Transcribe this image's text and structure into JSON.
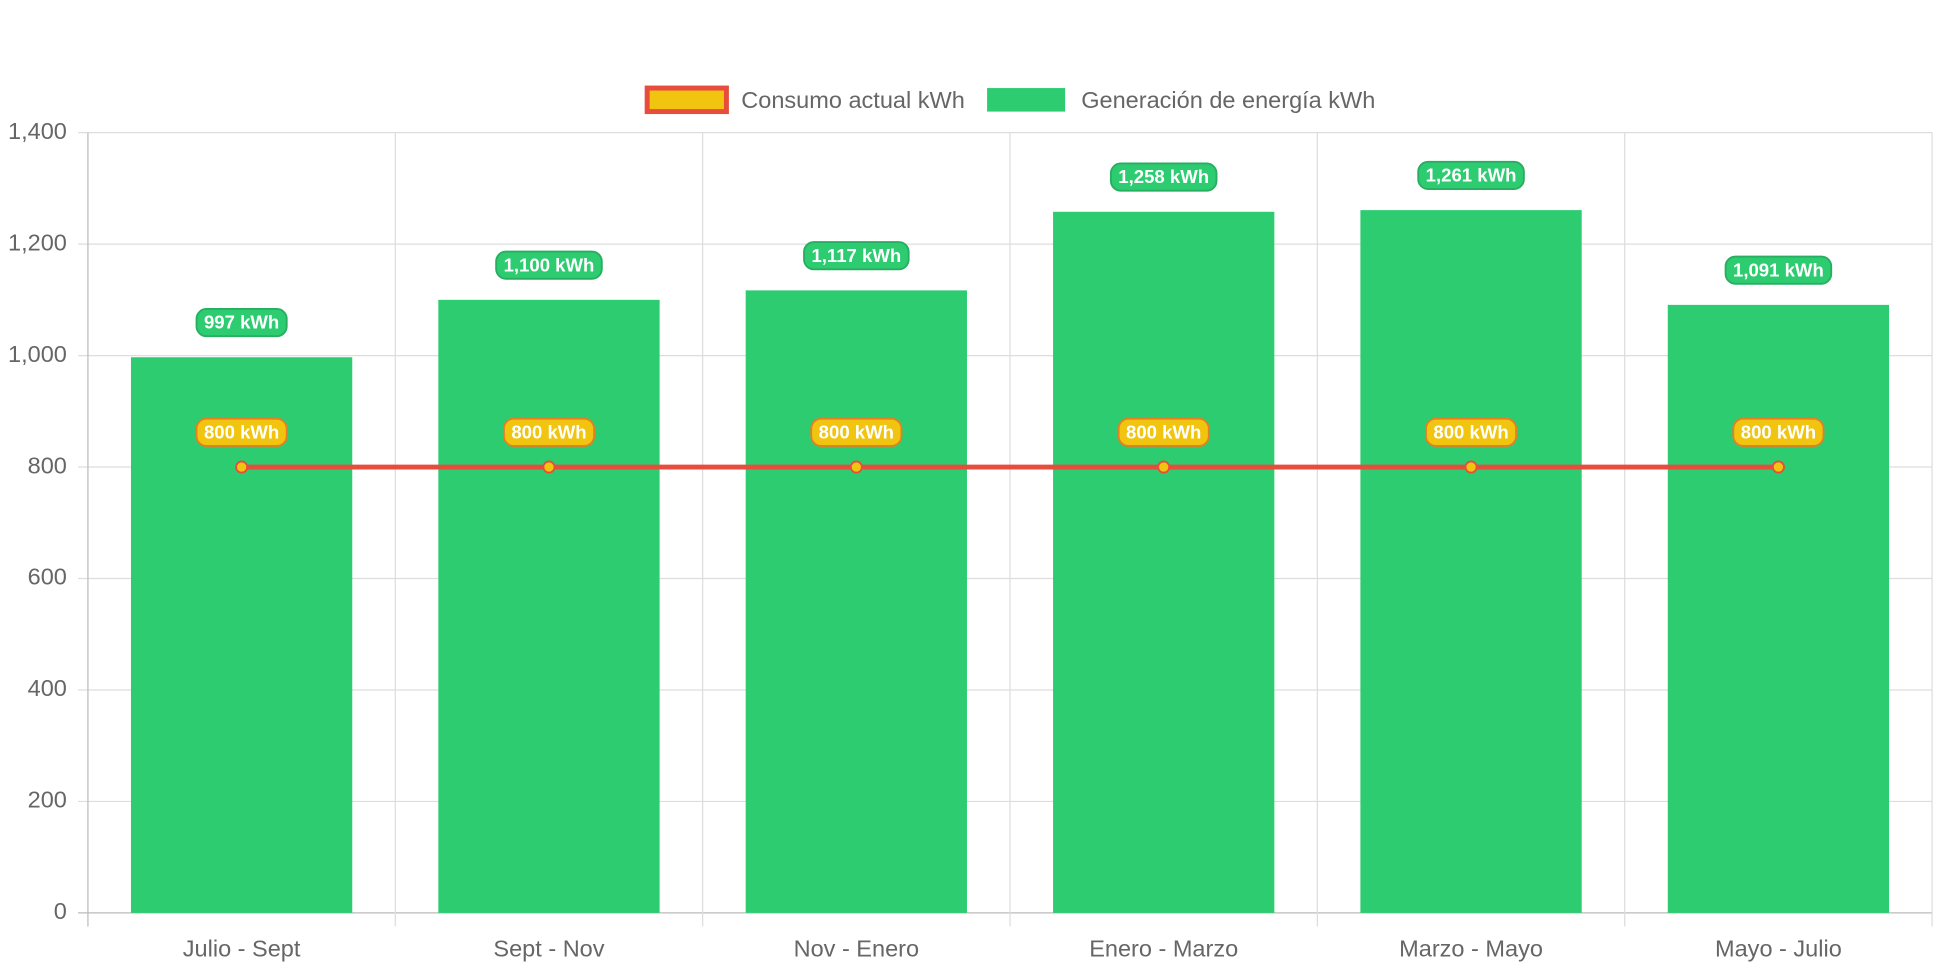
{
  "chart_data": {
    "type": "bar",
    "categories": [
      "Julio - Sept",
      "Sept - Nov",
      "Nov - Enero",
      "Enero - Marzo",
      "Marzo - Mayo",
      "Mayo - Julio"
    ],
    "series": [
      {
        "name": "Consumo actual kWh",
        "type": "line",
        "color": "#e74c3c",
        "point_color": "#f1c40f",
        "values": [
          800,
          800,
          800,
          800,
          800,
          800
        ],
        "value_labels": [
          "800 kWh",
          "800 kWh",
          "800 kWh",
          "800 kWh",
          "800 kWh",
          "800 kWh"
        ]
      },
      {
        "name": "Generación de energía kWh",
        "type": "bar",
        "color": "#2ecc71",
        "values": [
          997,
          1100,
          1117,
          1258,
          1261,
          1091
        ],
        "value_labels": [
          "997 kWh",
          "1,100 kWh",
          "1,117 kWh",
          "1,258 kWh",
          "1,261 kWh",
          "1,091 kWh"
        ]
      }
    ],
    "ylim": [
      0,
      1400
    ],
    "yticks": [
      0,
      200,
      400,
      600,
      800,
      {
        "value": 1000,
        "label": "1,000"
      },
      {
        "value": 1200,
        "label": "1,200"
      },
      {
        "value": 1400,
        "label": "1,400"
      }
    ],
    "grid": true,
    "legend": "top"
  }
}
